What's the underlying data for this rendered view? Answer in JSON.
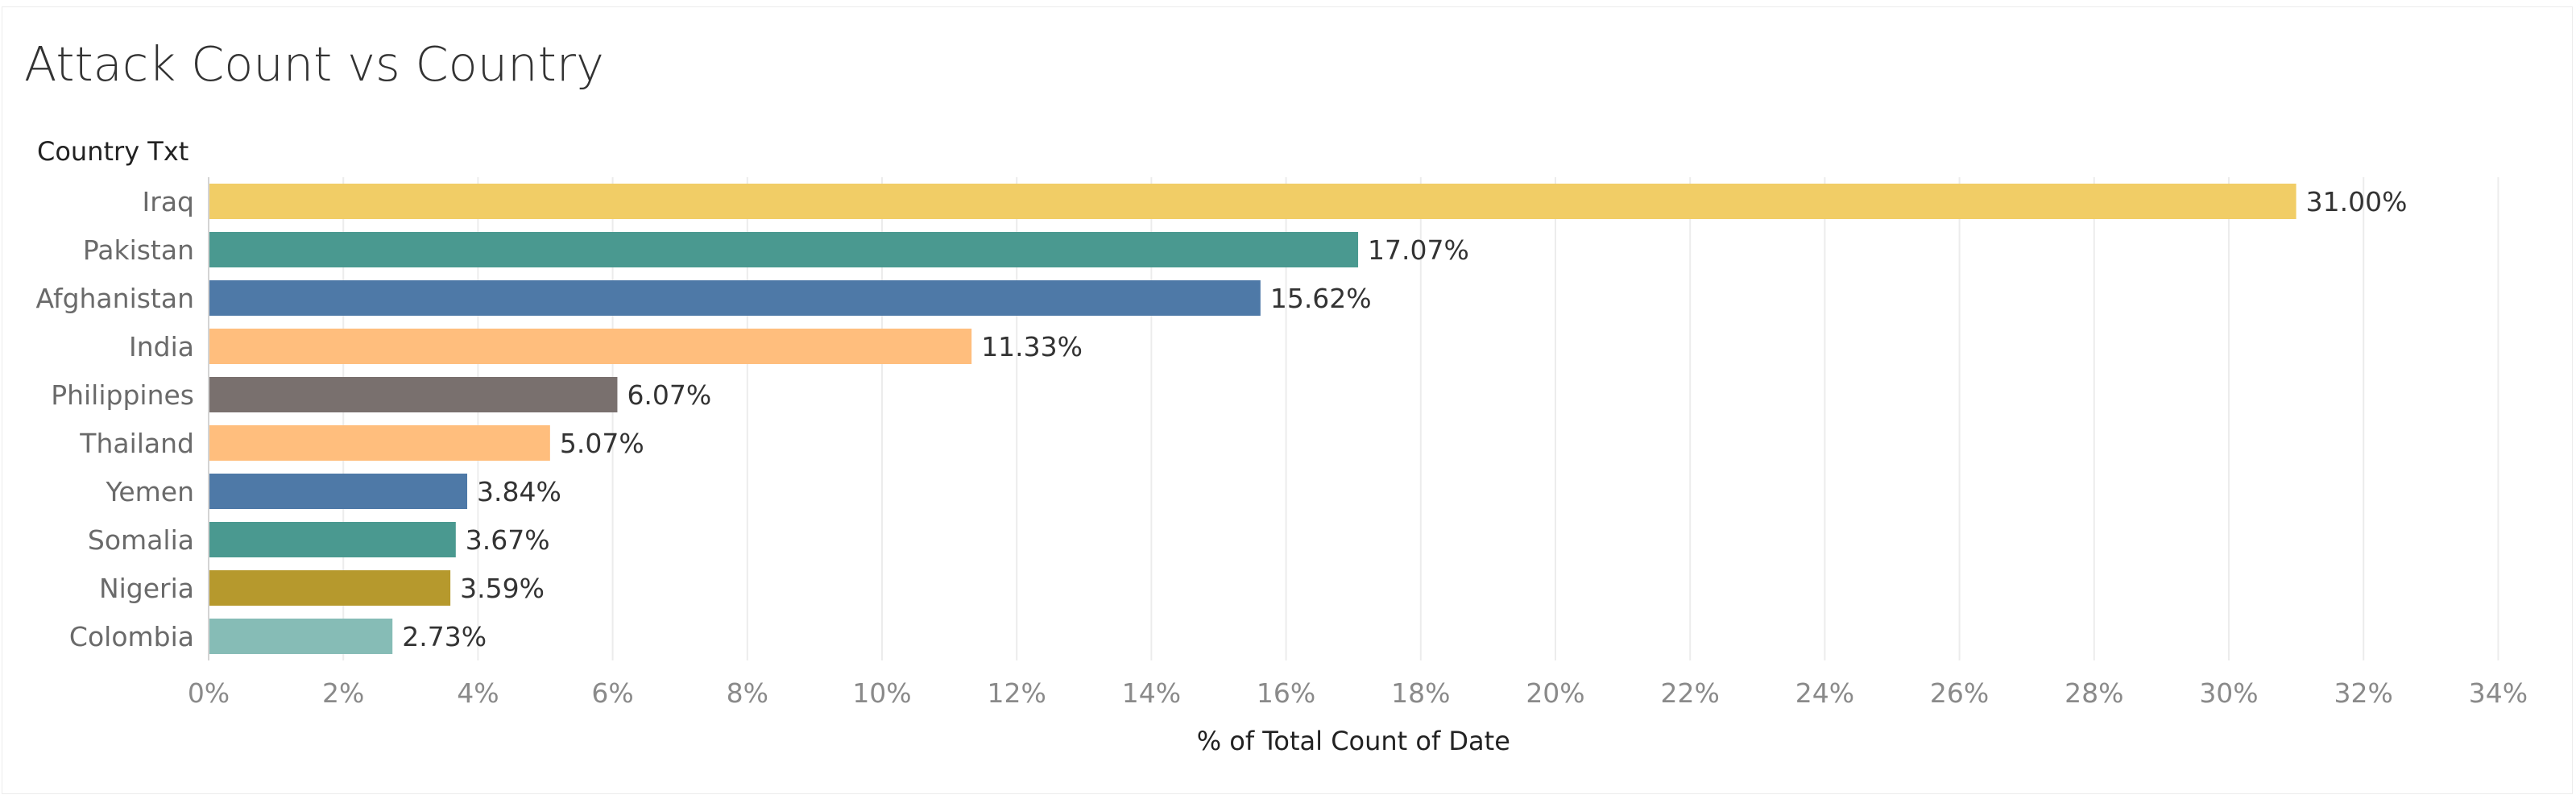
{
  "chart_data": {
    "type": "bar",
    "orientation": "horizontal",
    "title": "Attack Count vs Country",
    "row_header": "Country Txt",
    "xlabel": "% of Total Count of Date",
    "ylabel": "",
    "xlim": [
      0,
      34
    ],
    "x_ticks": [
      0,
      2,
      4,
      6,
      8,
      10,
      12,
      14,
      16,
      18,
      20,
      22,
      24,
      26,
      28,
      30,
      32,
      34
    ],
    "x_tick_labels": [
      "0%",
      "2%",
      "4%",
      "6%",
      "8%",
      "10%",
      "12%",
      "14%",
      "16%",
      "18%",
      "20%",
      "22%",
      "24%",
      "26%",
      "28%",
      "30%",
      "32%",
      "34%"
    ],
    "grid": "vertical",
    "legend": "none",
    "categories": [
      "Iraq",
      "Pakistan",
      "Afghanistan",
      "India",
      "Philippines",
      "Thailand",
      "Yemen",
      "Somalia",
      "Nigeria",
      "Colombia"
    ],
    "values": [
      31.0,
      17.07,
      15.62,
      11.33,
      6.07,
      5.07,
      3.84,
      3.67,
      3.59,
      2.73
    ],
    "value_labels": [
      "31.00%",
      "17.07%",
      "15.62%",
      "11.33%",
      "6.07%",
      "5.07%",
      "3.84%",
      "3.67%",
      "3.59%",
      "2.73%"
    ],
    "colors": [
      "#f1cd66",
      "#4a9990",
      "#4e79a7",
      "#ffbe7d",
      "#79706e",
      "#ffbe7d",
      "#4e79a7",
      "#4a9990",
      "#b6992d",
      "#86bcb6"
    ]
  }
}
